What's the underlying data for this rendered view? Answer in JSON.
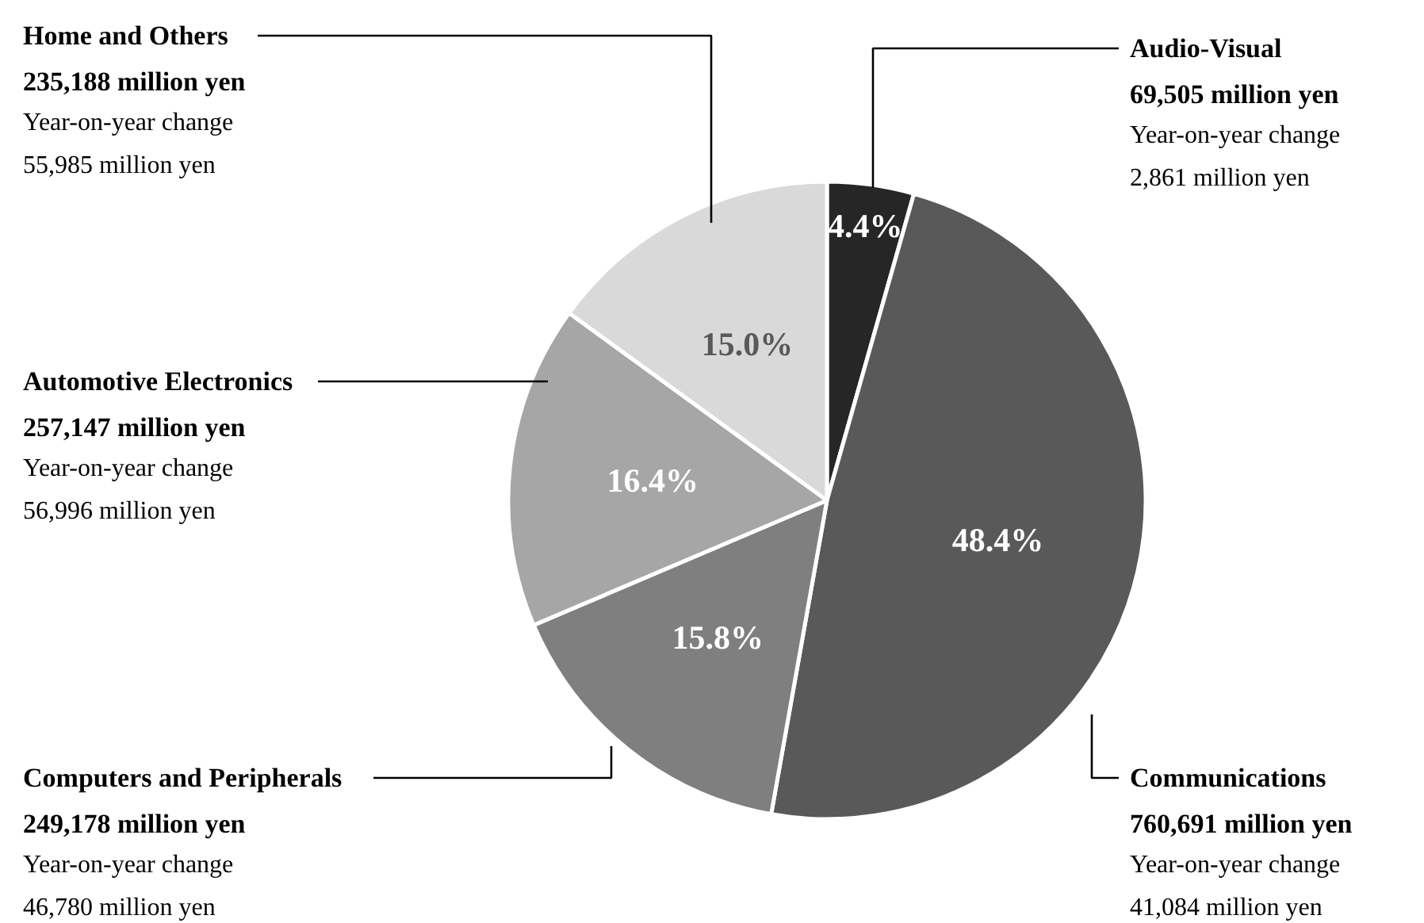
{
  "chart_data": {
    "type": "pie",
    "categories": [
      "Audio-Visual",
      "Communications",
      "Computers and Peripherals",
      "Automotive Electronics",
      "Home and Others"
    ],
    "values": [
      4.4,
      48.4,
      15.8,
      16.4,
      15.0
    ],
    "colors": [
      "#262626",
      "#595959",
      "#7f7f7f",
      "#a6a6a6",
      "#d9d9d9"
    ],
    "value_labels": [
      "4.4%",
      "48.4%",
      "15.8%",
      "16.4%",
      "15.0%"
    ],
    "annotations": [
      "69,505 million yen",
      "Year-on-year change",
      "2,861 million  yen",
      "760,691 million yen",
      "Year-on-year change",
      "41,084 million  yen",
      "249,178 million yen",
      "Year-on-year change",
      "46,780 million  yen",
      "257,147 million yen",
      "Year-on-year change",
      "56,996 million  yen",
      "235,188 million yen",
      "Year-on-year change",
      "55,985 million  yen"
    ]
  }
}
